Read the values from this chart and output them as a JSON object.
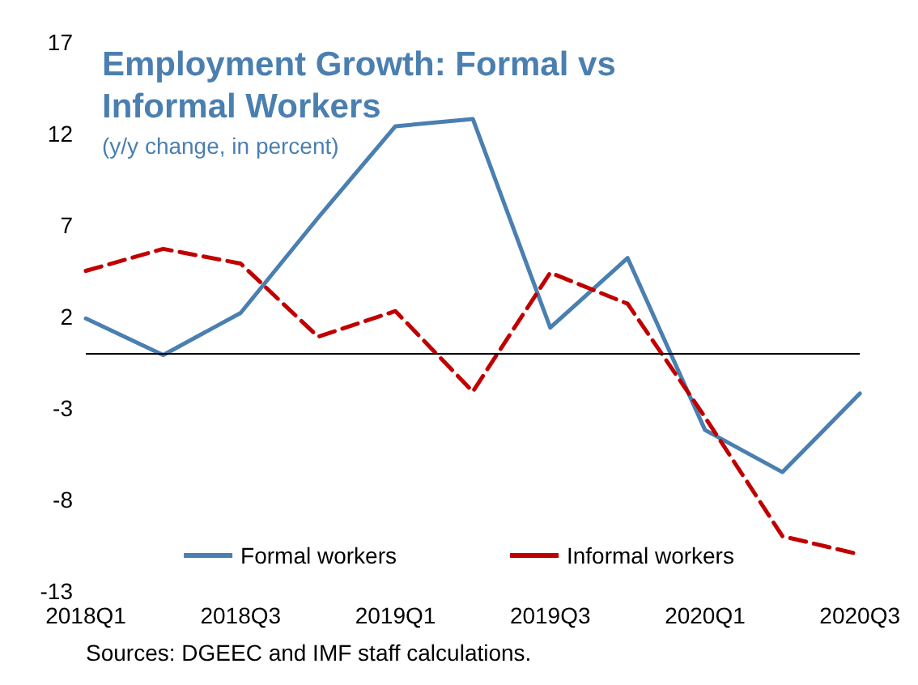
{
  "chart_data": {
    "type": "line",
    "title": "Employment Growth: Formal vs Informal Workers",
    "subtitle": "(y/y change, in percent)",
    "categories": [
      "2018Q1",
      null,
      "2018Q3",
      null,
      "2019Q1",
      null,
      "2019Q3",
      null,
      "2020Q1",
      null,
      "2020Q3"
    ],
    "series": [
      {
        "name": "Formal workers",
        "color": "#4a7fb0",
        "line_style": "solid",
        "values": [
          1.9,
          -0.1,
          2.2,
          7.4,
          12.4,
          12.8,
          1.4,
          5.2,
          -4.2,
          -6.5,
          -2.2
        ]
      },
      {
        "name": "Informal workers",
        "color": "#c00000",
        "line_style": "dashed",
        "values": [
          4.5,
          5.7,
          4.9,
          0.9,
          2.3,
          -2.1,
          4.4,
          2.7,
          -3.5,
          -10,
          -11
        ]
      }
    ],
    "ylim": [
      -13,
      17
    ],
    "yticks": [
      -13,
      -8,
      -3,
      2,
      7,
      12,
      17
    ],
    "ref_lines": [
      {
        "axis": "y",
        "value": 0,
        "color": "#000000"
      }
    ],
    "grid": false,
    "legend": "bottom",
    "marker": "none",
    "annotations": [
      "Sources: DGEEC and IMF staff calculations."
    ]
  }
}
